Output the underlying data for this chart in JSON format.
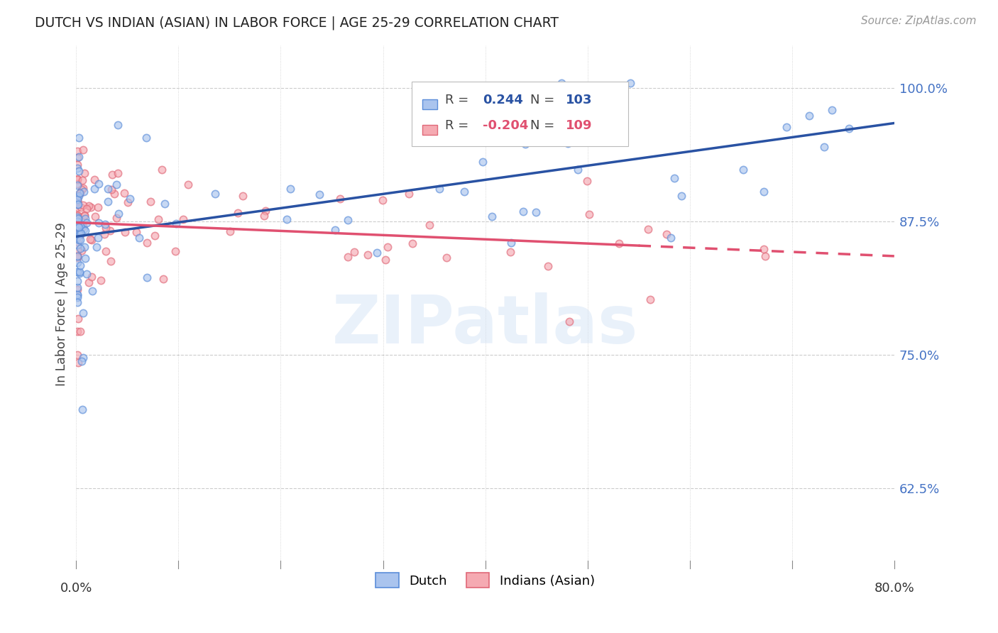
{
  "title": "DUTCH VS INDIAN (ASIAN) IN LABOR FORCE | AGE 25-29 CORRELATION CHART",
  "source": "Source: ZipAtlas.com",
  "ylabel": "In Labor Force | Age 25-29",
  "yticks": [
    0.625,
    0.75,
    0.875,
    1.0
  ],
  "ytick_labels": [
    "62.5%",
    "75.0%",
    "87.5%",
    "100.0%"
  ],
  "xmin": 0.0,
  "xmax": 0.8,
  "ymin": 0.555,
  "ymax": 1.04,
  "legend_r_dutch": "0.244",
  "legend_n_dutch": "103",
  "legend_r_indian": "-0.204",
  "legend_n_indian": "109",
  "dutch_color": "#aac4ee",
  "dutch_edge": "#5b8dd9",
  "indian_color": "#f5aab2",
  "indian_edge": "#e06878",
  "trendline_dutch_color": "#2952a3",
  "trendline_indian_color": "#e05070",
  "watermark": "ZIPatlas",
  "marker_size": 55,
  "marker_alpha": 0.65,
  "marker_linewidth": 1.2
}
